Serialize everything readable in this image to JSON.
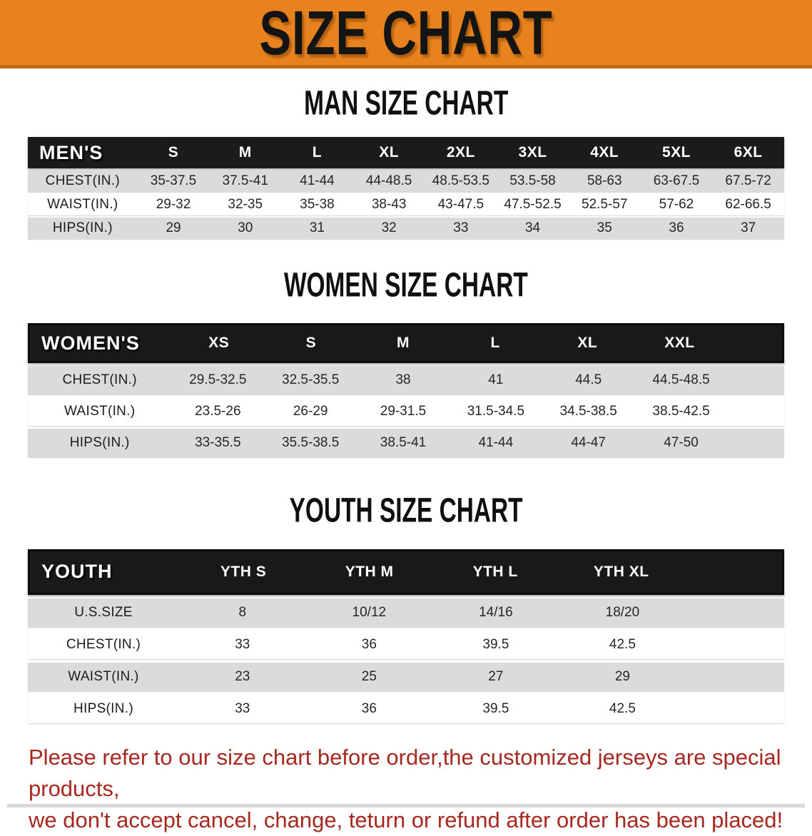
{
  "banner": {
    "title": "SIZE CHART",
    "bg_color": "#E8821E",
    "border_color": "#C1660D",
    "text_color": "#141414"
  },
  "sections": [
    {
      "id": "men",
      "title": "MAN SIZE CHART",
      "header_label": "MEN'S",
      "columns": [
        "S",
        "M",
        "L",
        "XL",
        "2XL",
        "3XL",
        "4XL",
        "5XL",
        "6XL"
      ],
      "rows": [
        {
          "label": "CHEST(IN.)",
          "values": [
            "35-37.5",
            "37.5-41",
            "41-44",
            "44-48.5",
            "48.5-53.5",
            "53.5-58",
            "58-63",
            "63-67.5",
            "67.5-72"
          ]
        },
        {
          "label": "WAIST(IN.)",
          "values": [
            "29-32",
            "32-35",
            "35-38",
            "38-43",
            "43-47.5",
            "47.5-52.5",
            "52.5-57",
            "57-62",
            "62-66.5"
          ]
        },
        {
          "label": "HIPS(IN.)",
          "values": [
            "29",
            "30",
            "31",
            "32",
            "33",
            "34",
            "35",
            "36",
            "37"
          ]
        }
      ]
    },
    {
      "id": "women",
      "title": "WOMEN SIZE CHART",
      "header_label": "WOMEN'S",
      "columns": [
        "XS",
        "S",
        "M",
        "L",
        "XL",
        "XXL"
      ],
      "rows": [
        {
          "label": "CHEST(IN.)",
          "values": [
            "29.5-32.5",
            "32.5-35.5",
            "38",
            "41",
            "44.5",
            "44.5-48.5"
          ]
        },
        {
          "label": "WAIST(IN.)",
          "values": [
            "23.5-26",
            "26-29",
            "29-31.5",
            "31.5-34.5",
            "34.5-38.5",
            "38.5-42.5"
          ]
        },
        {
          "label": "HIPS(IN.)",
          "values": [
            "33-35.5",
            "35.5-38.5",
            "38.5-41",
            "41-44",
            "44-47",
            "47-50"
          ]
        }
      ]
    },
    {
      "id": "youth",
      "title": "YOUTH SIZE CHART",
      "header_label": "YOUTH",
      "columns": [
        "YTH S",
        "YTH M",
        "YTH L",
        "YTH XL"
      ],
      "rows": [
        {
          "label": "U.S.SIZE",
          "values": [
            "8",
            "10/12",
            "14/16",
            "18/20"
          ]
        },
        {
          "label": "CHEST(IN.)",
          "values": [
            "33",
            "36",
            "39.5",
            "42.5"
          ]
        },
        {
          "label": "WAIST(IN.)",
          "values": [
            "23",
            "25",
            "27",
            "29"
          ]
        },
        {
          "label": "HIPS(IN.)",
          "values": [
            "33",
            "36",
            "39.5",
            "42.5"
          ]
        }
      ]
    }
  ],
  "disclaimer": {
    "line1": "Please refer to our size chart before order,the customized jerseys are special products,",
    "line2": "we don't accept cancel, change, teturn or refund after order has been placed!",
    "color": "#A6281F"
  },
  "colors": {
    "banner_orange": "#E8821E",
    "banner_border": "#C1660D",
    "header_bar_black": "#1B1B1B",
    "row_stripe_gray": "#DBDBDB",
    "disclaimer_red": "#A6281F"
  }
}
